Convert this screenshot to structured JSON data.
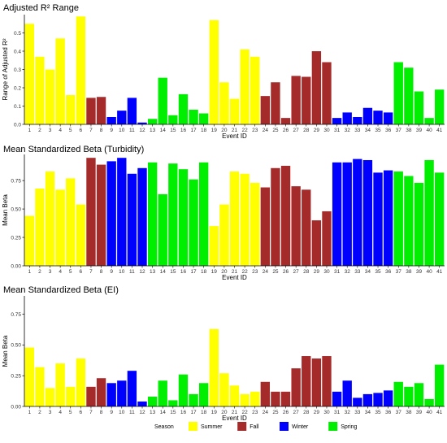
{
  "colors": {
    "Summer": "#ffff00",
    "Fall": "#a52a2a",
    "Winter": "#0000ff",
    "Spring": "#00ee00"
  },
  "event_ids": [
    1,
    2,
    3,
    4,
    5,
    6,
    7,
    8,
    9,
    10,
    11,
    12,
    13,
    14,
    15,
    16,
    17,
    18,
    19,
    20,
    21,
    22,
    23,
    24,
    25,
    26,
    27,
    28,
    29,
    30,
    31,
    32,
    33,
    34,
    35,
    36,
    37,
    38,
    39,
    40,
    41
  ],
  "seasons": [
    "Summer",
    "Summer",
    "Summer",
    "Summer",
    "Summer",
    "Summer",
    "Fall",
    "Fall",
    "Winter",
    "Winter",
    "Winter",
    "Winter",
    "Spring",
    "Spring",
    "Spring",
    "Spring",
    "Spring",
    "Spring",
    "Summer",
    "Summer",
    "Summer",
    "Summer",
    "Summer",
    "Fall",
    "Fall",
    "Fall",
    "Fall",
    "Fall",
    "Fall",
    "Fall",
    "Winter",
    "Winter",
    "Winter",
    "Winter",
    "Winter",
    "Winter",
    "Spring",
    "Spring",
    "Spring",
    "Spring",
    "Spring"
  ],
  "legend": {
    "title": "Season",
    "entries": [
      "Summer",
      "Fall",
      "Winter",
      "Spring"
    ]
  },
  "chart_data": [
    {
      "type": "bar",
      "title": "Adjusted R² Range",
      "xlabel": "Event ID",
      "ylabel": "Range of Adjusted R²",
      "ylim": [
        0,
        0.6
      ],
      "yticks": [
        "0.0",
        "0.1",
        "0.2",
        "0.3",
        "0.4",
        "0.5"
      ],
      "ytick_values": [
        0,
        0.1,
        0.2,
        0.3,
        0.4,
        0.5
      ],
      "values": [
        0.55,
        0.37,
        0.3,
        0.47,
        0.16,
        0.59,
        0.145,
        0.15,
        0.04,
        0.075,
        0.145,
        0.01,
        0.03,
        0.255,
        0.05,
        0.165,
        0.08,
        0.06,
        0.57,
        0.23,
        0.14,
        0.41,
        0.37,
        0.155,
        0.23,
        0.035,
        0.265,
        0.26,
        0.4,
        0.34,
        0.035,
        0.065,
        0.04,
        0.09,
        0.075,
        0.065,
        0.34,
        0.31,
        0.18,
        0.035,
        0.19
      ]
    },
    {
      "type": "bar",
      "title": "Mean Standardized Beta (Turbidity)",
      "xlabel": "Event ID",
      "ylabel": "Mean Beta",
      "ylim": [
        0,
        0.98
      ],
      "yticks": [
        "0.00",
        "0.25",
        "0.50",
        "0.75"
      ],
      "ytick_values": [
        0,
        0.25,
        0.5,
        0.75
      ],
      "values": [
        0.44,
        0.68,
        0.83,
        0.67,
        0.77,
        0.54,
        0.95,
        0.89,
        0.92,
        0.95,
        0.81,
        0.86,
        0.91,
        0.63,
        0.9,
        0.85,
        0.76,
        0.91,
        0.35,
        0.54,
        0.83,
        0.81,
        0.73,
        0.69,
        0.86,
        0.88,
        0.7,
        0.67,
        0.4,
        0.48,
        0.91,
        0.91,
        0.94,
        0.93,
        0.82,
        0.84,
        0.83,
        0.79,
        0.73,
        0.93,
        0.82
      ]
    },
    {
      "type": "bar",
      "title": "Mean Standardized Beta (EI)",
      "xlabel": "Event ID",
      "ylabel": "Mean Beta",
      "ylim": [
        0,
        0.9
      ],
      "yticks": [
        "0.00",
        "0.25",
        "0.50",
        "0.75"
      ],
      "ytick_values": [
        0,
        0.25,
        0.5,
        0.75
      ],
      "values": [
        0.48,
        0.32,
        0.15,
        0.35,
        0.16,
        0.39,
        0.16,
        0.23,
        0.19,
        0.21,
        0.29,
        0.04,
        0.08,
        0.21,
        0.05,
        0.26,
        0.1,
        0.19,
        0.63,
        0.27,
        0.17,
        0.1,
        0.12,
        0.2,
        0.12,
        0.12,
        0.31,
        0.41,
        0.39,
        0.41,
        0.12,
        0.21,
        0.07,
        0.1,
        0.11,
        0.13,
        0.2,
        0.16,
        0.19,
        0.06,
        0.34
      ]
    }
  ]
}
